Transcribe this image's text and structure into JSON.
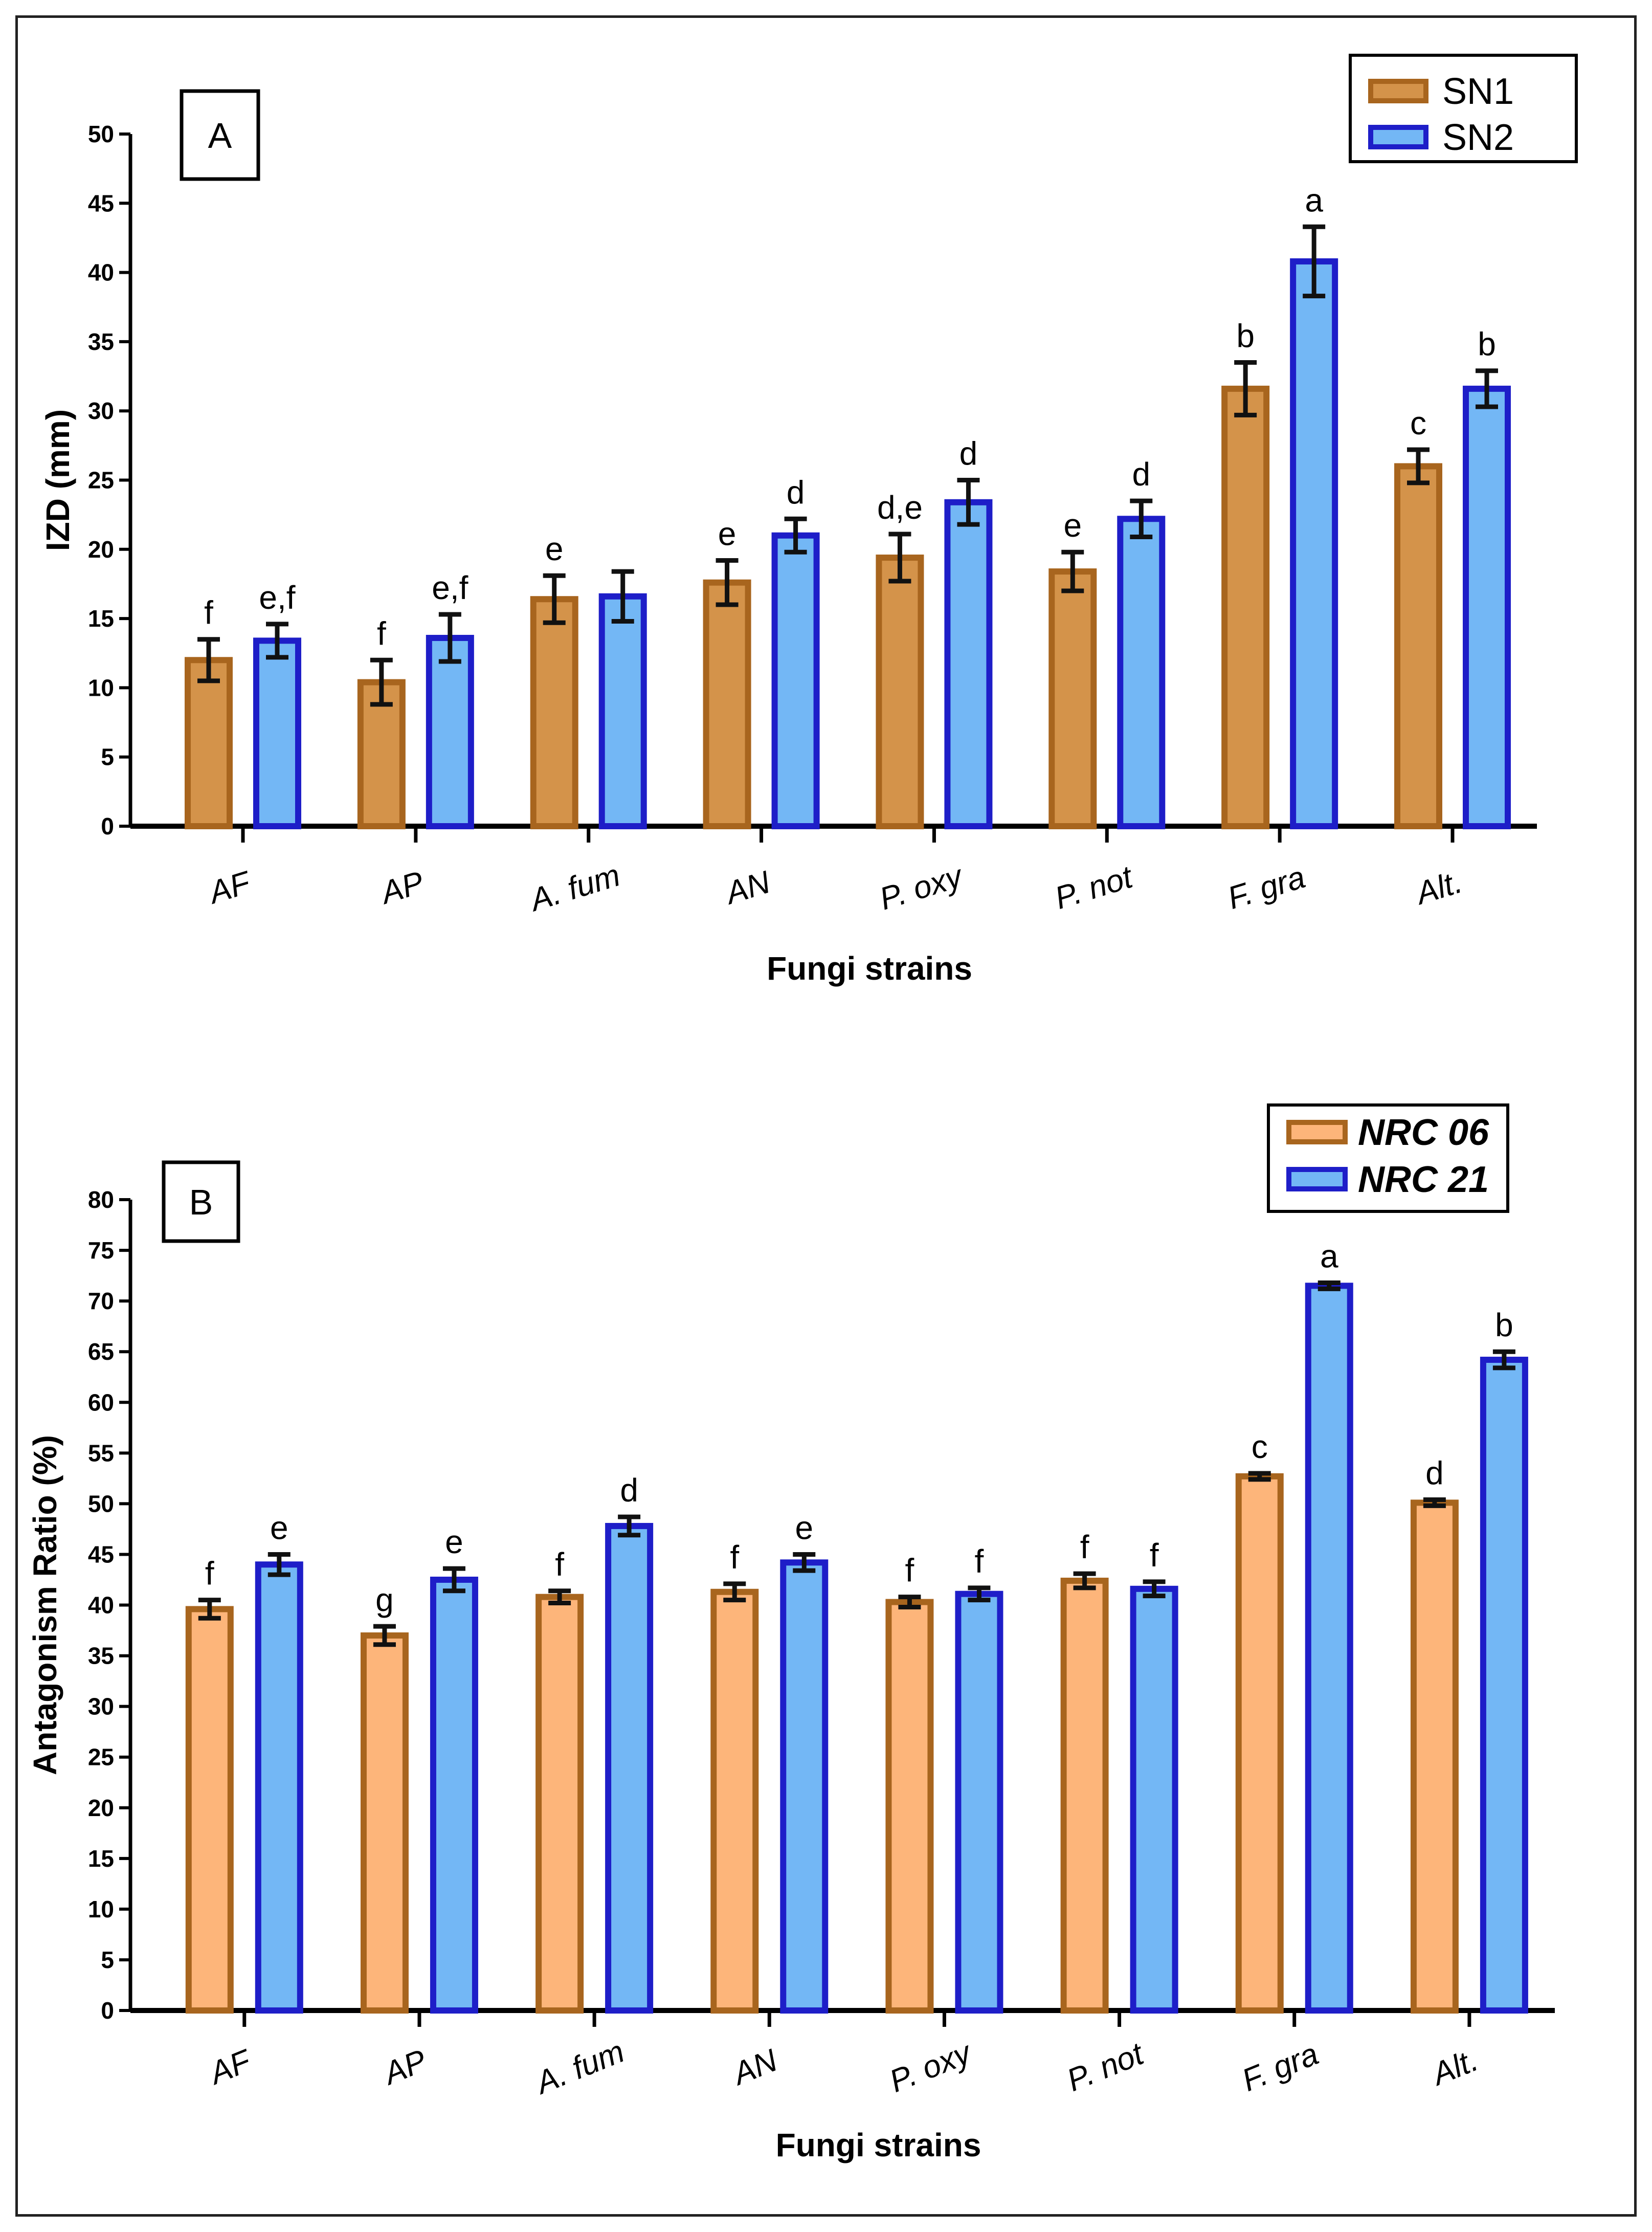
{
  "chart_data": [
    {
      "type": "bar",
      "panel_label": "A",
      "categories": [
        "AF",
        "AP",
        "A. fum",
        "AN",
        "P. oxy",
        "P. not",
        "F. gra",
        "Alt."
      ],
      "series": [
        {
          "name": "SN1",
          "color": "#D4934A",
          "edge": "#A8651E",
          "values": [
            12.0,
            10.4,
            16.4,
            17.6,
            19.4,
            18.4,
            31.6,
            26.0
          ],
          "errors": [
            1.5,
            1.6,
            1.7,
            1.6,
            1.7,
            1.4,
            1.9,
            1.2
          ],
          "letters": [
            "f",
            "f",
            "e",
            "e",
            "d,e",
            "e",
            "b",
            "c"
          ]
        },
        {
          "name": "SN2",
          "color": "#73B7F5",
          "edge": "#1E1EC8",
          "values": [
            13.4,
            13.6,
            16.6,
            21.0,
            23.4,
            22.2,
            40.8,
            31.6
          ],
          "errors": [
            1.2,
            1.7,
            1.8,
            1.2,
            1.6,
            1.3,
            2.5,
            1.3
          ],
          "letters": [
            "e,f",
            "e,f",
            "",
            "d",
            "d",
            "d",
            "a",
            "b"
          ]
        }
      ],
      "xlabel": "Fungi strains",
      "ylabel": "IZD (mm)",
      "ylim": [
        0,
        50
      ],
      "yticks": [
        0,
        5,
        10,
        15,
        20,
        25,
        30,
        35,
        40,
        45,
        50
      ],
      "legend_position": "top-right",
      "grid": false
    },
    {
      "type": "bar",
      "panel_label": "B",
      "categories": [
        "AF",
        "AP",
        "A. fum",
        "AN",
        "P. oxy",
        "P. not",
        "F. gra",
        "Alt."
      ],
      "series": [
        {
          "name": "NRC 06",
          "color": "#FDB57A",
          "edge": "#A8651E",
          "values": [
            39.6,
            37.0,
            40.8,
            41.3,
            40.3,
            42.4,
            52.7,
            50.1
          ],
          "errors": [
            0.9,
            0.9,
            0.6,
            0.8,
            0.5,
            0.7,
            0.3,
            0.3
          ],
          "letters": [
            "f",
            "g",
            "f",
            "f",
            "f",
            "f",
            "c",
            "d"
          ]
        },
        {
          "name": "NRC 21",
          "color": "#73B7F5",
          "edge": "#1E1EC8",
          "values": [
            44.0,
            42.5,
            47.8,
            44.2,
            41.1,
            41.6,
            71.5,
            64.2
          ],
          "errors": [
            1.0,
            1.1,
            0.9,
            0.8,
            0.6,
            0.7,
            0.3,
            0.8
          ],
          "letters": [
            "e",
            "e",
            "d",
            "e",
            "f",
            "f",
            "a",
            "b"
          ]
        }
      ],
      "xlabel": "Fungi strains",
      "ylabel": "Antagonism Ratio (%)",
      "ylim": [
        0,
        80
      ],
      "yticks": [
        0,
        5,
        10,
        15,
        20,
        25,
        30,
        35,
        40,
        45,
        50,
        55,
        60,
        65,
        70,
        75,
        80
      ],
      "legend_position": "top-right",
      "grid": false
    }
  ]
}
